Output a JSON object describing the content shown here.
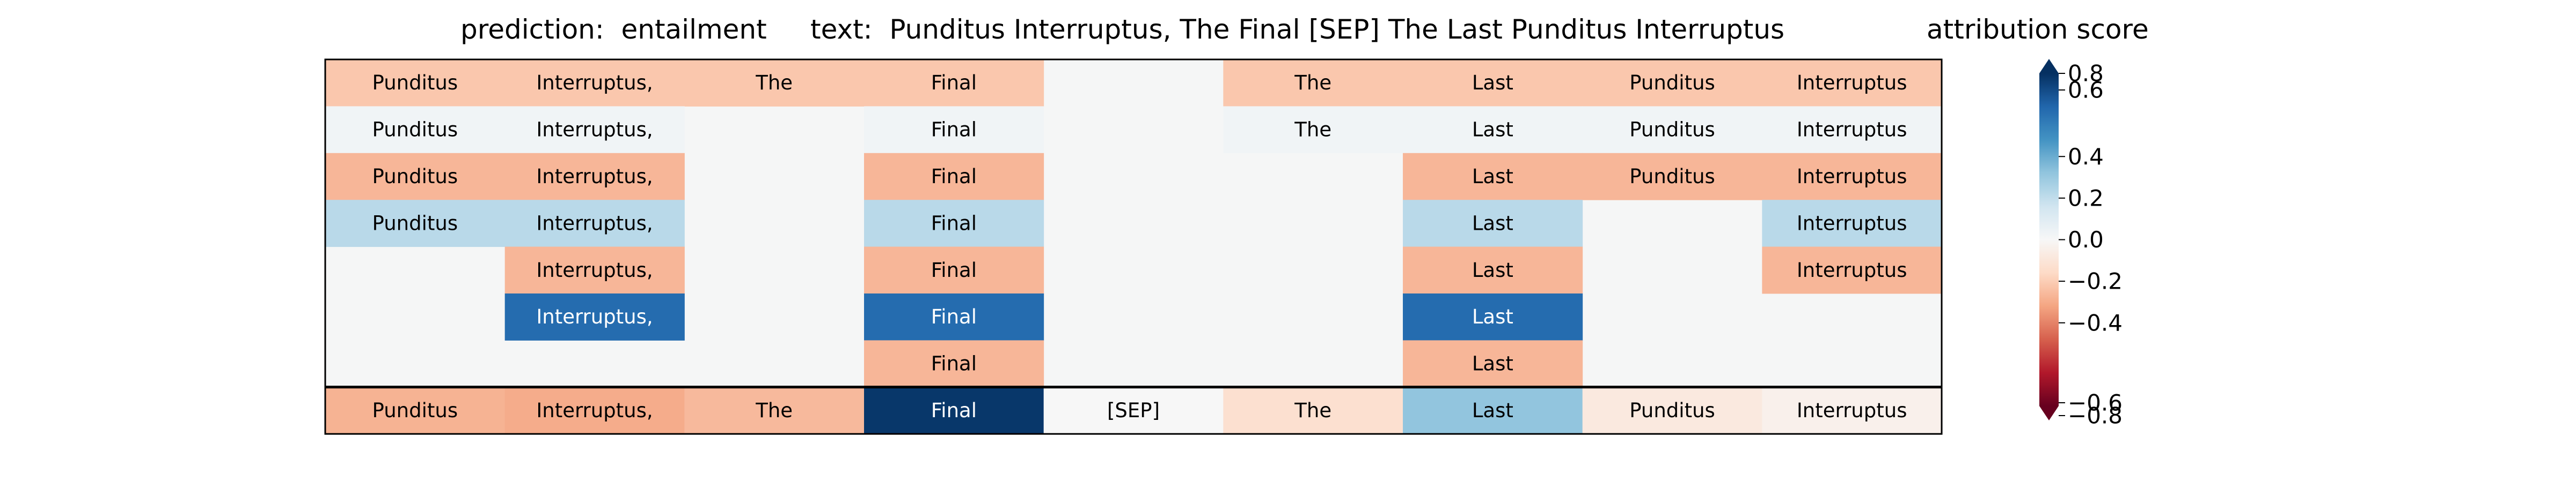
{
  "header": {
    "prediction": "prediction:  entailment",
    "text": "text:  Punditus Interruptus, The Final [SEP] The Last Punditus Interruptus",
    "colorbar_title": "attribution score"
  },
  "chart_data": {
    "type": "heatmap",
    "colormap": "RdBu",
    "vmin": -0.8,
    "vmax": 0.8,
    "colorbar_ticks": [
      0.8,
      0.6,
      0.4,
      0.2,
      0.0,
      -0.2,
      -0.4,
      -0.6,
      -0.8
    ],
    "colorbar_tick_labels": [
      "0.8",
      "0.6",
      "0.4",
      "0.2",
      "0.0",
      "−0.2",
      "−0.4",
      "−0.6",
      "−0.8"
    ],
    "colorbar_extend": "both",
    "background_color": "#f5f6f6",
    "tokens": [
      "Punditus",
      "Interruptus,",
      "The",
      "Final",
      "[SEP]",
      "The",
      "Last",
      "Punditus",
      "Interruptus"
    ],
    "rows": [
      {
        "cells": [
          {
            "label": "Punditus",
            "value": -0.22
          },
          {
            "label": "Interruptus,",
            "value": -0.22
          },
          {
            "label": "The",
            "value": -0.22
          },
          {
            "label": "Final",
            "value": -0.22
          },
          null,
          {
            "label": "The",
            "value": -0.22
          },
          {
            "label": "Last",
            "value": -0.22
          },
          {
            "label": "Punditus",
            "value": -0.22
          },
          {
            "label": "Interruptus",
            "value": -0.22
          }
        ]
      },
      {
        "cells": [
          {
            "label": "Punditus",
            "value": 0.03
          },
          {
            "label": "Interruptus,",
            "value": 0.03
          },
          null,
          {
            "label": "Final",
            "value": 0.03
          },
          null,
          {
            "label": "The",
            "value": 0.03
          },
          {
            "label": "Last",
            "value": 0.03
          },
          {
            "label": "Punditus",
            "value": 0.03
          },
          {
            "label": "Interruptus",
            "value": 0.03
          }
        ]
      },
      {
        "cells": [
          {
            "label": "Punditus",
            "value": -0.27
          },
          {
            "label": "Interruptus,",
            "value": -0.27
          },
          null,
          {
            "label": "Final",
            "value": -0.27
          },
          null,
          null,
          {
            "label": "Last",
            "value": -0.27
          },
          {
            "label": "Punditus",
            "value": -0.27
          },
          {
            "label": "Interruptus",
            "value": -0.27
          }
        ]
      },
      {
        "cells": [
          {
            "label": "Punditus",
            "value": 0.22
          },
          {
            "label": "Interruptus,",
            "value": 0.22
          },
          null,
          {
            "label": "Final",
            "value": 0.22
          },
          null,
          null,
          {
            "label": "Last",
            "value": 0.22
          },
          null,
          {
            "label": "Interruptus",
            "value": 0.22
          }
        ]
      },
      {
        "cells": [
          null,
          {
            "label": "Interruptus,",
            "value": -0.27
          },
          null,
          {
            "label": "Final",
            "value": -0.27
          },
          null,
          null,
          {
            "label": "Last",
            "value": -0.27
          },
          null,
          {
            "label": "Interruptus",
            "value": -0.27
          }
        ]
      },
      {
        "cells": [
          null,
          {
            "label": "Interruptus,",
            "value": 0.62
          },
          null,
          {
            "label": "Final",
            "value": 0.62
          },
          null,
          null,
          {
            "label": "Last",
            "value": 0.62
          },
          null,
          null
        ]
      },
      {
        "cells": [
          null,
          null,
          null,
          {
            "label": "Final",
            "value": -0.27
          },
          null,
          null,
          {
            "label": "Last",
            "value": -0.27
          },
          null,
          null
        ]
      }
    ],
    "summary_row": [
      {
        "label": "Punditus",
        "value": -0.28
      },
      {
        "label": "Interruptus,",
        "value": -0.3
      },
      {
        "label": "The",
        "value": -0.26
      },
      {
        "label": "Final",
        "value": 0.78
      },
      {
        "label": "[SEP]",
        "value": 0.0
      },
      {
        "label": "The",
        "value": -0.13
      },
      {
        "label": "Last",
        "value": 0.32
      },
      {
        "label": "Punditus",
        "value": -0.08
      },
      {
        "label": "Interruptus",
        "value": -0.04
      }
    ]
  }
}
